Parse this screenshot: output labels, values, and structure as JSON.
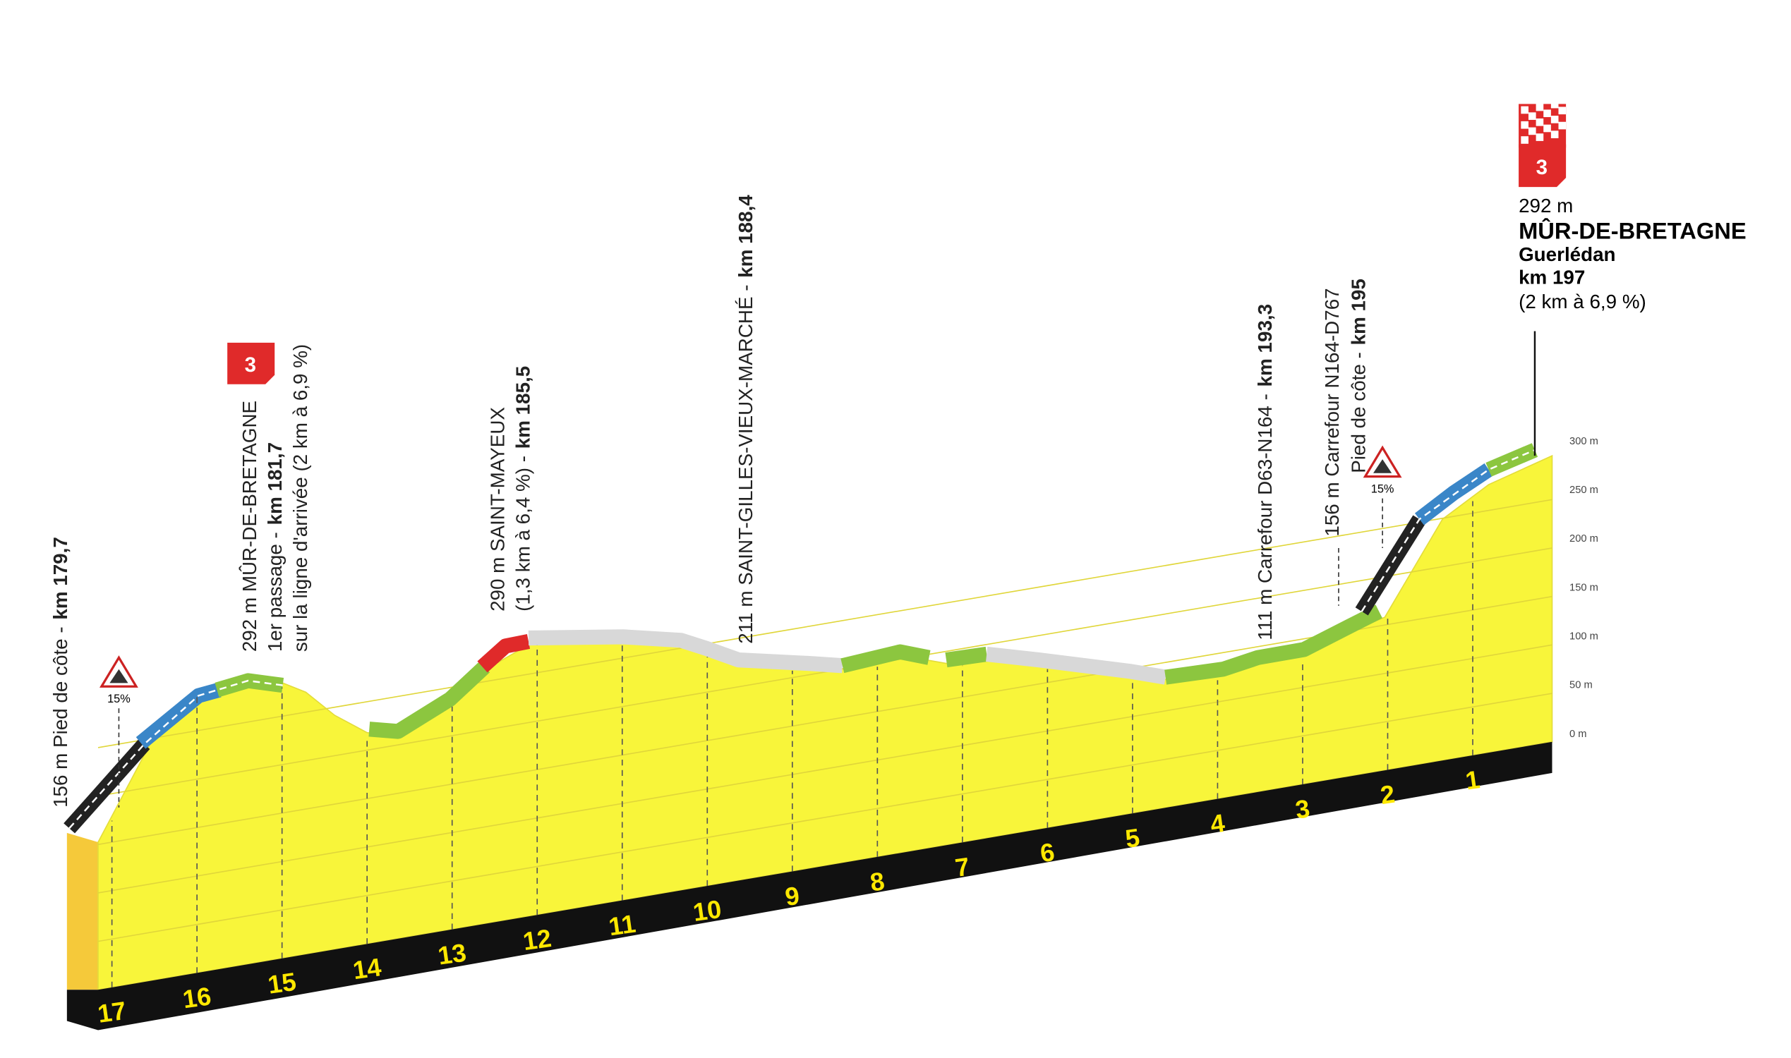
{
  "elevation_ticks": [
    "300 m",
    "250 m",
    "200 m",
    "150 m",
    "100 m",
    "50 m",
    "0 m"
  ],
  "km_markers": [
    "17",
    "16",
    "15",
    "14",
    "13",
    "12",
    "11",
    "10",
    "9",
    "8",
    "7",
    "6",
    "5",
    "4",
    "3",
    "2",
    "1"
  ],
  "waypoints": [
    {
      "lines": [
        "156 m Pied de côte -"
      ],
      "km": "km 179,7"
    },
    {
      "lines": [
        "292 m MÛR-DE-BRETAGNE",
        "1er passage -",
        "sur la ligne d'arrivée (2 km à 6,9 %)"
      ],
      "km": "km 181,7",
      "category": "3"
    },
    {
      "lines": [
        "290 m SAINT-MAYEUX",
        "(1,3 km à 6,4 %) -"
      ],
      "km": "km 185,5"
    },
    {
      "lines": [
        "211 m SAINT-GILLES-VIEUX-MARCHÉ -"
      ],
      "km": "km 188,4"
    },
    {
      "lines": [
        "111 m Carrefour D63-N164 -"
      ],
      "km": "km 193,3"
    },
    {
      "lines": [
        "156 m Carrefour N164-D767",
        "Pied de côte -"
      ],
      "km": "km 195"
    }
  ],
  "gradients": [
    "15%",
    "15%"
  ],
  "finish": {
    "altitude": "292 m",
    "name": "MÛR-DE-BRETAGNE",
    "town": "Guerlédan",
    "km": "km 197",
    "climb": "(2 km à 6,9 %)",
    "category": "3"
  }
}
